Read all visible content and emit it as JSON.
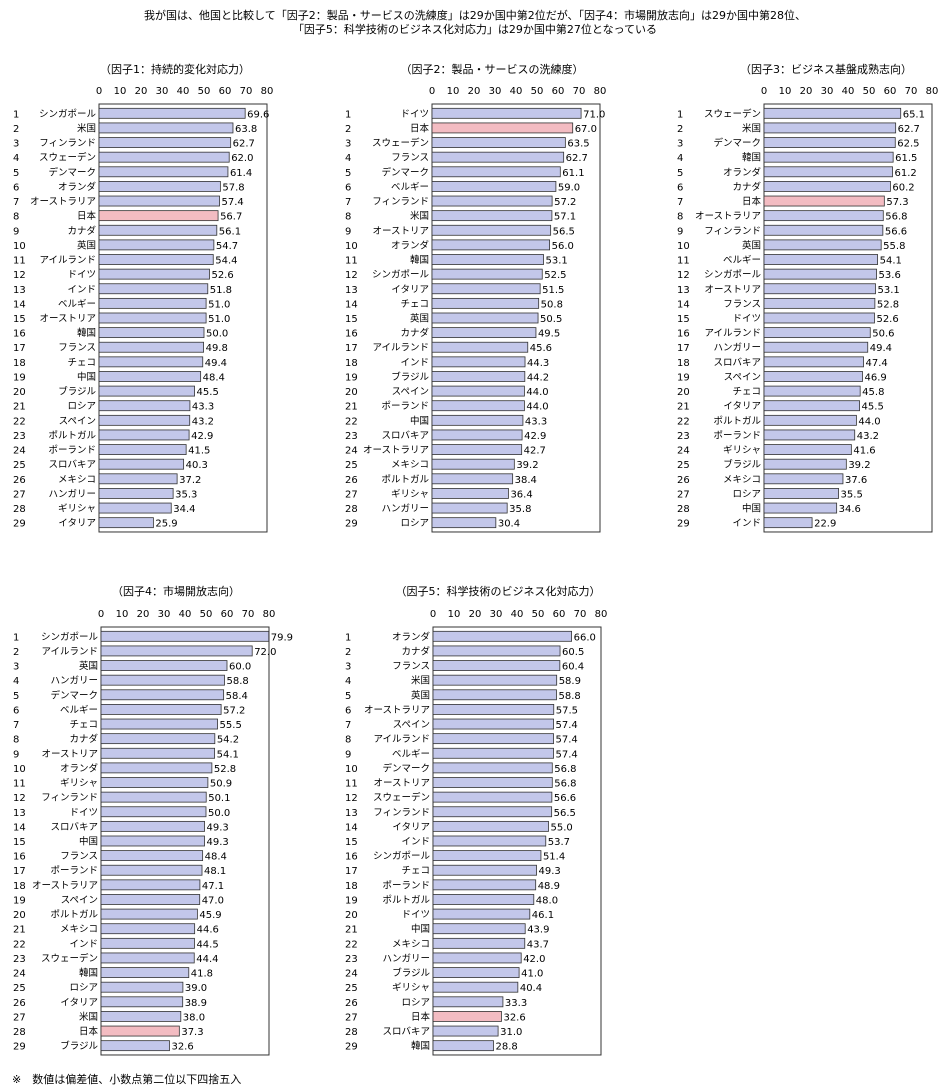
{
  "headline": {
    "line1": "我が国は、他国と比較して「因子2：製品・サービスの洗練度」は29か国中第2位だが、「因子4：市場開放志向」は29か国中第28位、",
    "line2": "「因子5：科学技術のビジネス化対応力」は29か国中第27位となっている"
  },
  "footnote": "※　数値は偏差値、小数点第二位以下四捨五入",
  "colors": {
    "bar": "#c3c7ea",
    "highlight": "#f3bcc2",
    "border": "#333333"
  },
  "chart_data": [
    {
      "type": "bar",
      "orientation": "horizontal",
      "title": "（因子1：持続的変化対応力）",
      "xlim": [
        0,
        80
      ],
      "xticks": [
        0,
        10,
        20,
        30,
        40,
        50,
        60,
        70,
        80
      ],
      "highlight": "日本",
      "ranks": [
        1,
        2,
        3,
        4,
        5,
        6,
        7,
        8,
        9,
        10,
        11,
        12,
        13,
        14,
        15,
        16,
        17,
        18,
        19,
        20,
        21,
        22,
        23,
        24,
        25,
        26,
        27,
        28,
        29
      ],
      "categories": [
        "シンガポール",
        "米国",
        "フィンランド",
        "スウェーデン",
        "デンマーク",
        "オランダ",
        "オーストラリア",
        "日本",
        "カナダ",
        "英国",
        "アイルランド",
        "ドイツ",
        "インド",
        "ベルギー",
        "オーストリア",
        "韓国",
        "フランス",
        "チェコ",
        "中国",
        "ブラジル",
        "ロシア",
        "スペイン",
        "ポルトガル",
        "ポーランド",
        "スロバキア",
        "メキシコ",
        "ハンガリー",
        "ギリシャ",
        "イタリア"
      ],
      "values": [
        69.6,
        63.8,
        62.7,
        62.0,
        61.4,
        57.8,
        57.4,
        56.7,
        56.1,
        54.7,
        54.4,
        52.6,
        51.8,
        51.0,
        51.0,
        50.0,
        49.8,
        49.4,
        48.4,
        45.5,
        43.3,
        43.2,
        42.9,
        41.5,
        40.3,
        37.2,
        35.3,
        34.4,
        25.9
      ],
      "labels": [
        "69.6",
        "63.8",
        "62.7",
        "62.0",
        "61.4",
        "57.8",
        "57.4",
        "56.7",
        "56.1",
        "54.7",
        "54.4",
        "52.6",
        "51.8",
        "51.0",
        "51.0",
        "50.0",
        "49.8",
        "49.4",
        "48.4",
        "45.5",
        "43.3",
        "43.2",
        "42.9",
        "41.5",
        "40.3",
        "37.2",
        "35.3",
        "34.4",
        "25.9"
      ]
    },
    {
      "type": "bar",
      "orientation": "horizontal",
      "title": "（因子2：製品・サービスの洗練度）",
      "xlim": [
        0,
        80
      ],
      "xticks": [
        0,
        10,
        20,
        30,
        40,
        50,
        60,
        70,
        80
      ],
      "highlight": "日本",
      "ranks": [
        1,
        2,
        3,
        4,
        5,
        6,
        7,
        8,
        9,
        10,
        11,
        12,
        13,
        14,
        15,
        16,
        17,
        18,
        19,
        20,
        21,
        22,
        23,
        24,
        25,
        26,
        27,
        28,
        29
      ],
      "categories": [
        "ドイツ",
        "日本",
        "スウェーデン",
        "フランス",
        "デンマーク",
        "ベルギー",
        "フィンランド",
        "米国",
        "オーストリア",
        "オランダ",
        "韓国",
        "シンガポール",
        "イタリア",
        "チェコ",
        "英国",
        "カナダ",
        "アイルランド",
        "インド",
        "ブラジル",
        "スペイン",
        "ポーランド",
        "中国",
        "スロバキア",
        "オーストラリア",
        "メキシコ",
        "ポルトガル",
        "ギリシャ",
        "ハンガリー",
        "ロシア"
      ],
      "values": [
        71.0,
        67.0,
        63.5,
        62.7,
        61.1,
        59.0,
        57.2,
        57.1,
        56.5,
        56.0,
        53.1,
        52.5,
        51.5,
        50.8,
        50.5,
        49.5,
        45.6,
        44.3,
        44.2,
        44.0,
        44.0,
        43.3,
        42.9,
        42.7,
        39.2,
        38.4,
        36.4,
        35.8,
        30.4
      ],
      "labels": [
        "71.0",
        "67.0",
        "63.5",
        "62.7",
        "61.1",
        "59.0",
        "57.2",
        "57.1",
        "56.5",
        "56.0",
        "53.1",
        "52.5",
        "51.5",
        "50.8",
        "50.5",
        "49.5",
        "45.6",
        "44.3",
        "44.2",
        "44.0",
        "44.0",
        "43.3",
        "42.9",
        "42.7",
        "39.2",
        "38.4",
        "36.4",
        "35.8",
        "30.4"
      ]
    },
    {
      "type": "bar",
      "orientation": "horizontal",
      "title": "（因子3：ビジネス基盤成熟志向）",
      "xlim": [
        0,
        80
      ],
      "xticks": [
        0,
        10,
        20,
        30,
        40,
        50,
        60,
        70,
        80
      ],
      "highlight": "日本",
      "ranks": [
        1,
        2,
        3,
        4,
        5,
        6,
        7,
        8,
        9,
        10,
        11,
        12,
        13,
        14,
        15,
        16,
        17,
        18,
        19,
        20,
        21,
        22,
        23,
        24,
        25,
        26,
        27,
        28,
        29
      ],
      "categories": [
        "スウェーデン",
        "米国",
        "デンマーク",
        "韓国",
        "オランダ",
        "カナダ",
        "日本",
        "オーストラリア",
        "フィンランド",
        "英国",
        "ベルギー",
        "シンガポール",
        "オーストリア",
        "フランス",
        "ドイツ",
        "アイルランド",
        "ハンガリー",
        "スロバキア",
        "スペイン",
        "チェコ",
        "イタリア",
        "ポルトガル",
        "ポーランド",
        "ギリシャ",
        "ブラジル",
        "メキシコ",
        "ロシア",
        "中国",
        "インド"
      ],
      "values": [
        65.1,
        62.7,
        62.5,
        61.5,
        61.2,
        60.2,
        57.3,
        56.8,
        56.6,
        55.8,
        54.1,
        53.6,
        53.1,
        52.8,
        52.6,
        50.6,
        49.4,
        47.4,
        46.9,
        45.8,
        45.5,
        44.0,
        43.2,
        41.6,
        39.2,
        37.6,
        35.5,
        34.6,
        22.9
      ],
      "labels": [
        "65.1",
        "62.7",
        "62.5",
        "61.5",
        "61.2",
        "60.2",
        "57.3",
        "56.8",
        "56.6",
        "55.8",
        "54.1",
        "53.6",
        "53.1",
        "52.8",
        "52.6",
        "50.6",
        "49.4",
        "47.4",
        "46.9",
        "45.8",
        "45.5",
        "44.0",
        "43.2",
        "41.6",
        "39.2",
        "37.6",
        "35.5",
        "34.6",
        "22.9"
      ]
    },
    {
      "type": "bar",
      "orientation": "horizontal",
      "title": "（因子4：市場開放志向）",
      "xlim": [
        0,
        80
      ],
      "xticks": [
        0,
        10,
        20,
        30,
        40,
        50,
        60,
        70,
        80
      ],
      "highlight": "日本",
      "ranks": [
        1,
        2,
        3,
        4,
        5,
        6,
        7,
        8,
        9,
        10,
        11,
        12,
        13,
        14,
        15,
        16,
        17,
        18,
        19,
        20,
        21,
        22,
        23,
        24,
        25,
        26,
        27,
        28,
        29
      ],
      "categories": [
        "シンガポール",
        "アイルランド",
        "英国",
        "ハンガリー",
        "デンマーク",
        "ベルギー",
        "チェコ",
        "カナダ",
        "オーストリア",
        "オランダ",
        "ギリシャ",
        "フィンランド",
        "ドイツ",
        "スロバキア",
        "中国",
        "フランス",
        "ポーランド",
        "オーストラリア",
        "スペイン",
        "ポルトガル",
        "メキシコ",
        "インド",
        "スウェーデン",
        "韓国",
        "ロシア",
        "イタリア",
        "米国",
        "日本",
        "ブラジル"
      ],
      "values": [
        79.9,
        72.0,
        60.0,
        58.8,
        58.4,
        57.2,
        55.5,
        54.2,
        54.1,
        52.8,
        50.9,
        50.1,
        50.0,
        49.3,
        49.3,
        48.4,
        48.1,
        47.1,
        47.0,
        45.9,
        44.6,
        44.5,
        44.4,
        41.8,
        39.0,
        38.9,
        38.0,
        37.3,
        32.6
      ],
      "labels": [
        "79.9",
        "72.0",
        "60.0",
        "58.8",
        "58.4",
        "57.2",
        "55.5",
        "54.2",
        "54.1",
        "52.8",
        "50.9",
        "50.1",
        "50.0",
        "49.3",
        "49.3",
        "48.4",
        "48.1",
        "47.1",
        "47.0",
        "45.9",
        "44.6",
        "44.5",
        "44.4",
        "41.8",
        "39.0",
        "38.9",
        "38.0",
        "37.3",
        "32.6"
      ]
    },
    {
      "type": "bar",
      "orientation": "horizontal",
      "title": "（因子5：科学技術のビジネス化対応力）",
      "xlim": [
        0,
        80
      ],
      "xticks": [
        0,
        10,
        20,
        30,
        40,
        50,
        60,
        70,
        80
      ],
      "highlight": "日本",
      "ranks": [
        1,
        2,
        3,
        4,
        5,
        6,
        7,
        8,
        9,
        10,
        11,
        12,
        13,
        14,
        15,
        16,
        17,
        18,
        19,
        20,
        21,
        22,
        23,
        24,
        25,
        26,
        27,
        28,
        29
      ],
      "categories": [
        "オランダ",
        "カナダ",
        "フランス",
        "米国",
        "英国",
        "オーストラリア",
        "スペイン",
        "アイルランド",
        "ベルギー",
        "デンマーク",
        "オーストリア",
        "スウェーデン",
        "フィンランド",
        "イタリア",
        "インド",
        "シンガポール",
        "チェコ",
        "ポーランド",
        "ポルトガル",
        "ドイツ",
        "中国",
        "メキシコ",
        "ハンガリー",
        "ブラジル",
        "ギリシャ",
        "ロシア",
        "日本",
        "スロバキア",
        "韓国"
      ],
      "values": [
        66.0,
        60.5,
        60.4,
        58.9,
        58.8,
        57.5,
        57.4,
        57.4,
        57.4,
        56.8,
        56.8,
        56.6,
        56.5,
        55.0,
        53.7,
        51.4,
        49.3,
        48.9,
        48.0,
        46.1,
        43.9,
        43.7,
        42.0,
        41.0,
        40.4,
        33.3,
        32.6,
        31.0,
        28.8
      ],
      "labels": [
        "66.0",
        "60.5",
        "60.4",
        "58.9",
        "58.8",
        "57.5",
        "57.4",
        "57.4",
        "57.4",
        "56.8",
        "56.8",
        "56.6",
        "56.5",
        "55.0",
        "53.7",
        "51.4",
        "49.3",
        "48.9",
        "48.0",
        "46.1",
        "43.9",
        "43.7",
        "42.0",
        "41.0",
        "40.4",
        "33.3",
        "32.6",
        "31.0",
        "28.8"
      ]
    }
  ]
}
